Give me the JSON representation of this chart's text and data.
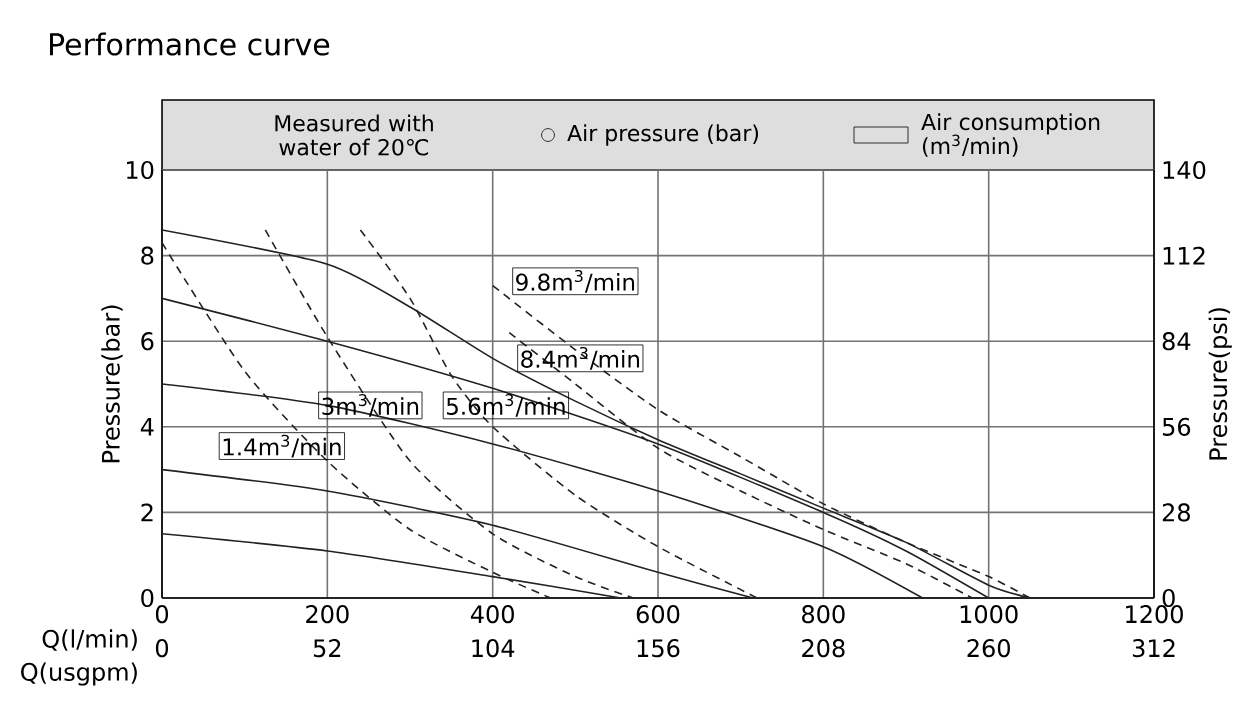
{
  "chart_data": {
    "type": "line",
    "title": "Performance curve",
    "xlabel": "Q(l/min)",
    "x2label": "Q(usgpm)",
    "ylabel": "Pressure(bar)",
    "y2label": "Pressure(psi)",
    "xlim": [
      0,
      1200
    ],
    "xticks": [
      0,
      200,
      400,
      600,
      800,
      1000,
      1200
    ],
    "x2lim": [
      0,
      312
    ],
    "x2ticks": [
      0,
      52,
      104,
      156,
      208,
      260,
      312
    ],
    "ylim": [
      0,
      10
    ],
    "yticks": [
      0,
      2,
      4,
      6,
      8,
      10
    ],
    "y2lim": [
      0,
      140
    ],
    "y2ticks": [
      0,
      28,
      56,
      84,
      112,
      140
    ],
    "grid": true,
    "series": [
      {
        "color": "#222222",
        "line_style": "solid",
        "x": [
          0,
          200,
          300,
          400,
          500,
          600,
          700,
          800,
          900,
          1000,
          1050
        ],
        "values": [
          8.6,
          7.8,
          6.8,
          5.6,
          4.6,
          3.7,
          2.9,
          2.1,
          1.3,
          0.3,
          0
        ]
      },
      {
        "color": "#222222",
        "line_style": "solid",
        "x": [
          0,
          200,
          400,
          600,
          800,
          900,
          1000
        ],
        "values": [
          7.0,
          6.0,
          4.9,
          3.6,
          2.0,
          1.1,
          0
        ]
      },
      {
        "color": "#222222",
        "line_style": "solid",
        "x": [
          0,
          200,
          400,
          600,
          800,
          920
        ],
        "values": [
          5.0,
          4.5,
          3.6,
          2.5,
          1.2,
          0
        ]
      },
      {
        "color": "#222222",
        "line_style": "solid",
        "x": [
          0,
          200,
          400,
          600,
          715
        ],
        "values": [
          3.0,
          2.5,
          1.7,
          0.6,
          0
        ]
      },
      {
        "color": "#222222",
        "line_style": "solid",
        "x": [
          0,
          200,
          400,
          555
        ],
        "values": [
          1.5,
          1.1,
          0.5,
          0
        ]
      },
      {
        "name": "1.4m$^{3}$/min",
        "color": "#222222",
        "line_style": "dashed",
        "x": [
          0,
          100,
          200,
          300,
          400,
          470
        ],
        "values": [
          8.3,
          5.3,
          3.2,
          1.6,
          0.6,
          0
        ]
      },
      {
        "name": "3m$^{3}$/min",
        "color": "#222222",
        "line_style": "dashed",
        "x": [
          125,
          200,
          300,
          400,
          500,
          570
        ],
        "values": [
          8.6,
          6.1,
          3.2,
          1.5,
          0.5,
          0
        ]
      },
      {
        "name": "5.6m$^{3}$/min",
        "color": "#222222",
        "line_style": "dashed",
        "x": [
          240,
          300,
          350,
          400,
          500,
          600,
          720
        ],
        "values": [
          8.6,
          7.0,
          5.2,
          4.0,
          2.4,
          1.2,
          0
        ]
      },
      {
        "name": "8.4m$^{3}$/min",
        "color": "#222222",
        "line_style": "dashed",
        "x": [
          420,
          500,
          600,
          700,
          800,
          900,
          980
        ],
        "values": [
          6.2,
          5.0,
          3.5,
          2.5,
          1.6,
          0.8,
          0
        ]
      },
      {
        "name": "9.8m$^{3}$/min",
        "color": "#222222",
        "line_style": "dashed",
        "x": [
          400,
          500,
          600,
          700,
          800,
          900,
          1000,
          1050
        ],
        "values": [
          7.3,
          5.8,
          4.4,
          3.3,
          2.2,
          1.3,
          0.5,
          0
        ]
      }
    ],
    "annotations": [
      "Measured with water of 20℃",
      "Air pressure (bar)",
      "Air consumption (m$^{3}$/min)"
    ]
  }
}
